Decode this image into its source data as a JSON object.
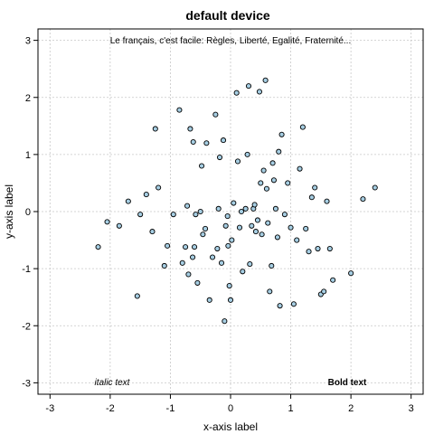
{
  "chart_data": {
    "type": "scatter",
    "title": "default device",
    "xlabel": "x-axis label",
    "ylabel": "y-axis label",
    "xlim": [
      -3.2,
      3.2
    ],
    "ylim": [
      -3.2,
      3.2
    ],
    "xticks": [
      "-3",
      "-2",
      "-1",
      "0",
      "1",
      "2",
      "3"
    ],
    "yticks": [
      "-3",
      "-2",
      "-1",
      "0",
      "1",
      "2",
      "3"
    ],
    "grid": true,
    "point_fill": "#a6cee3",
    "annotations": {
      "top": "Le français, c'est facile: Règles, Liberté, Egalité, Fraternité...",
      "bottom_left": "italic text",
      "bottom_right": "Bold text"
    },
    "points": [
      [
        -2.2,
        -0.62
      ],
      [
        -2.05,
        -0.18
      ],
      [
        -1.85,
        -0.25
      ],
      [
        -1.7,
        0.18
      ],
      [
        -1.55,
        -1.48
      ],
      [
        -1.5,
        -0.05
      ],
      [
        -1.4,
        0.3
      ],
      [
        -1.3,
        -0.35
      ],
      [
        -1.25,
        1.45
      ],
      [
        -1.2,
        0.42
      ],
      [
        -1.1,
        -0.95
      ],
      [
        -1.05,
        -0.6
      ],
      [
        -0.95,
        -0.05
      ],
      [
        -0.85,
        1.78
      ],
      [
        -0.8,
        -0.9
      ],
      [
        -0.75,
        -0.62
      ],
      [
        -0.72,
        0.1
      ],
      [
        -0.7,
        -1.1
      ],
      [
        -0.67,
        1.45
      ],
      [
        -0.63,
        -0.8
      ],
      [
        -0.62,
        1.22
      ],
      [
        -0.6,
        -0.62
      ],
      [
        -0.58,
        -0.05
      ],
      [
        -0.55,
        -1.25
      ],
      [
        -0.5,
        0.0
      ],
      [
        -0.48,
        0.8
      ],
      [
        -0.46,
        -0.4
      ],
      [
        -0.42,
        -0.3
      ],
      [
        -0.4,
        1.2
      ],
      [
        -0.35,
        -1.55
      ],
      [
        -0.3,
        -0.8
      ],
      [
        -0.25,
        1.7
      ],
      [
        -0.22,
        -0.65
      ],
      [
        -0.2,
        0.05
      ],
      [
        -0.18,
        0.95
      ],
      [
        -0.15,
        -0.9
      ],
      [
        -0.12,
        1.25
      ],
      [
        -0.1,
        -1.92
      ],
      [
        -0.08,
        -0.25
      ],
      [
        -0.05,
        -0.08
      ],
      [
        -0.04,
        -0.6
      ],
      [
        -0.02,
        -1.3
      ],
      [
        0.0,
        -1.55
      ],
      [
        0.02,
        -0.5
      ],
      [
        0.05,
        0.15
      ],
      [
        0.1,
        2.08
      ],
      [
        0.12,
        0.88
      ],
      [
        0.15,
        -0.28
      ],
      [
        0.18,
        0.0
      ],
      [
        0.2,
        -1.05
      ],
      [
        0.25,
        0.05
      ],
      [
        0.28,
        1.0
      ],
      [
        0.3,
        2.2
      ],
      [
        0.32,
        -0.92
      ],
      [
        0.35,
        -0.25
      ],
      [
        0.38,
        0.05
      ],
      [
        0.4,
        0.12
      ],
      [
        0.42,
        -0.35
      ],
      [
        0.45,
        -0.15
      ],
      [
        0.48,
        2.1
      ],
      [
        0.5,
        0.5
      ],
      [
        0.52,
        -0.4
      ],
      [
        0.55,
        0.72
      ],
      [
        0.58,
        2.3
      ],
      [
        0.6,
        0.4
      ],
      [
        0.62,
        -0.2
      ],
      [
        0.65,
        -1.4
      ],
      [
        0.68,
        -0.95
      ],
      [
        0.7,
        0.85
      ],
      [
        0.72,
        0.55
      ],
      [
        0.75,
        0.05
      ],
      [
        0.78,
        -0.45
      ],
      [
        0.8,
        1.05
      ],
      [
        0.82,
        -1.65
      ],
      [
        0.85,
        1.35
      ],
      [
        0.9,
        -0.05
      ],
      [
        0.95,
        0.5
      ],
      [
        1.0,
        -0.28
      ],
      [
        1.05,
        -1.62
      ],
      [
        1.1,
        -0.5
      ],
      [
        1.15,
        0.75
      ],
      [
        1.2,
        1.48
      ],
      [
        1.25,
        -0.3
      ],
      [
        1.3,
        -0.7
      ],
      [
        1.35,
        0.25
      ],
      [
        1.4,
        0.42
      ],
      [
        1.45,
        -0.65
      ],
      [
        1.5,
        -1.45
      ],
      [
        1.55,
        -1.4
      ],
      [
        1.6,
        0.18
      ],
      [
        1.65,
        -0.65
      ],
      [
        1.7,
        -1.2
      ],
      [
        2.0,
        -1.08
      ],
      [
        2.2,
        0.22
      ],
      [
        2.4,
        0.42
      ]
    ]
  }
}
